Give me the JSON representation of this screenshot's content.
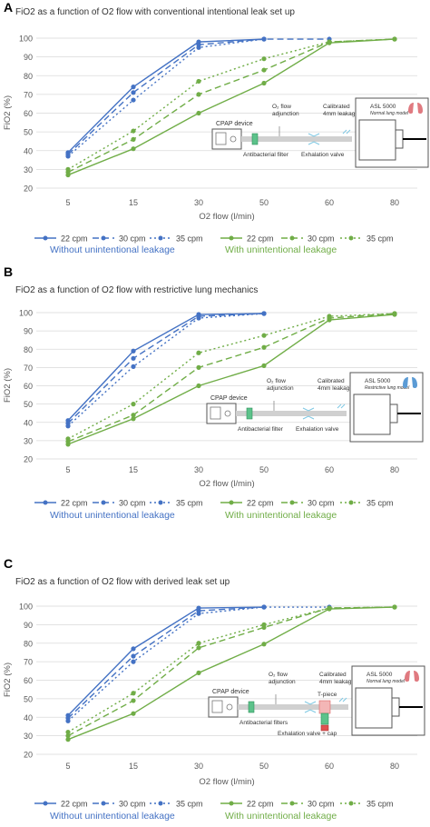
{
  "colors": {
    "blue": "#4472c4",
    "green": "#70ad47",
    "grid": "#d9d9d9",
    "axis": "#595959"
  },
  "legend": {
    "entries": [
      "22 cpm",
      "30 cpm",
      "35 cpm",
      "22 cpm",
      "30 cpm",
      "35 cpm"
    ],
    "group_without": "Without unintentional leakage",
    "group_with": "With unintentional leakage"
  },
  "chart_data": [
    {
      "type": "line",
      "panel": "A",
      "title": "FiO2 as a function of O2 flow with conventional intentional leak set up",
      "xlabel": "O2 flow (l/min)",
      "ylabel": "FiO2 (%)",
      "categories": [
        "5",
        "15",
        "30",
        "50",
        "60",
        "80"
      ],
      "ylim": [
        20,
        100
      ],
      "yticks": [
        20,
        30,
        40,
        50,
        60,
        70,
        80,
        90,
        100
      ],
      "grid": "horizontal",
      "legend_position": "bottom",
      "series": [
        {
          "name": "22 cpm",
          "group": "Without unintentional leakage",
          "color": "blue",
          "dash": "solid",
          "values": [
            39,
            74,
            98,
            99.5,
            null,
            null
          ]
        },
        {
          "name": "30 cpm",
          "group": "Without unintentional leakage",
          "color": "blue",
          "dash": "dashed",
          "values": [
            38,
            71,
            96.5,
            99.5,
            99.5,
            null
          ]
        },
        {
          "name": "35 cpm",
          "group": "Without unintentional leakage",
          "color": "blue",
          "dash": "dotted",
          "values": [
            37,
            67,
            95,
            99.5,
            null,
            null
          ]
        },
        {
          "name": "22 cpm",
          "group": "With unintentional leakage",
          "color": "green",
          "dash": "solid",
          "values": [
            27,
            41,
            60,
            76,
            97.5,
            99.5
          ]
        },
        {
          "name": "30 cpm",
          "group": "With unintentional leakage",
          "color": "green",
          "dash": "dashed",
          "values": [
            28.5,
            46,
            70,
            83,
            98,
            99.5
          ]
        },
        {
          "name": "35 cpm",
          "group": "With unintentional leakage",
          "color": "green",
          "dash": "dotted",
          "values": [
            30,
            50.5,
            77,
            89,
            98,
            99.5
          ]
        }
      ],
      "diagram": {
        "device": "CPAP device",
        "o2_label": "O₂ flow adjunction",
        "leak_label": "Calibrated 4mm leakage",
        "filter_label": "Antibacterial filter",
        "valve_label": "Exhalation valve",
        "lung_title": "ASL 5000",
        "lung_subtitle": "Normal lung model",
        "lung_color": "#e07a80",
        "variant": "A"
      }
    },
    {
      "type": "line",
      "panel": "B",
      "title": "FiO2 as a function of O2 flow with restrictive lung mechanics",
      "xlabel": "O2 flow (l/min)",
      "ylabel": "FiO2 (%)",
      "categories": [
        "5",
        "15",
        "30",
        "50",
        "60",
        "80"
      ],
      "ylim": [
        20,
        100
      ],
      "yticks": [
        20,
        30,
        40,
        50,
        60,
        70,
        80,
        90,
        100
      ],
      "grid": "horizontal",
      "legend_position": "bottom",
      "series": [
        {
          "name": "22 cpm",
          "group": "Without unintentional leakage",
          "color": "blue",
          "dash": "solid",
          "values": [
            41,
            79,
            99,
            99.5,
            null,
            null
          ]
        },
        {
          "name": "30 cpm",
          "group": "Without unintentional leakage",
          "color": "blue",
          "dash": "dashed",
          "values": [
            39.5,
            75,
            98,
            99.5,
            null,
            null
          ]
        },
        {
          "name": "35 cpm",
          "group": "Without unintentional leakage",
          "color": "blue",
          "dash": "dotted",
          "values": [
            38,
            70.5,
            97,
            99.5,
            null,
            null
          ]
        },
        {
          "name": "22 cpm",
          "group": "With unintentional leakage",
          "color": "green",
          "dash": "solid",
          "values": [
            28,
            42,
            60,
            71,
            96,
            99
          ]
        },
        {
          "name": "30 cpm",
          "group": "With unintentional leakage",
          "color": "green",
          "dash": "dashed",
          "values": [
            29.5,
            44,
            70,
            81,
            97,
            99.5
          ]
        },
        {
          "name": "35 cpm",
          "group": "With unintentional leakage",
          "color": "green",
          "dash": "dotted",
          "values": [
            31,
            50,
            78,
            87.5,
            98,
            99.5
          ]
        }
      ],
      "diagram": {
        "device": "CPAP device",
        "o2_label": "O₂ flow adjunction",
        "leak_label": "Calibrated 4mm leakage",
        "filter_label": "Antibacterial filter",
        "valve_label": "Exhalation valve",
        "lung_title": "ASL 5000",
        "lung_subtitle": "Restrictive lung model",
        "lung_color": "#5b9bd5",
        "variant": "B"
      }
    },
    {
      "type": "line",
      "panel": "C",
      "title": "FiO2 as a function of O2 flow with derived leak set up",
      "xlabel": "O2 flow (l/min)",
      "ylabel": "FiO2 (%)",
      "categories": [
        "5",
        "15",
        "30",
        "50",
        "60",
        "80"
      ],
      "ylim": [
        20,
        100
      ],
      "yticks": [
        20,
        30,
        40,
        50,
        60,
        70,
        80,
        90,
        100
      ],
      "grid": "horizontal",
      "legend_position": "bottom",
      "series": [
        {
          "name": "22 cpm",
          "group": "Without unintentional leakage",
          "color": "blue",
          "dash": "solid",
          "values": [
            41,
            77,
            99,
            99.5,
            null,
            null
          ]
        },
        {
          "name": "30 cpm",
          "group": "Without unintentional leakage",
          "color": "blue",
          "dash": "dashed",
          "values": [
            39.5,
            73,
            97.5,
            99.5,
            null,
            null
          ]
        },
        {
          "name": "35 cpm",
          "group": "Without unintentional leakage",
          "color": "blue",
          "dash": "dotted",
          "values": [
            38,
            70,
            96,
            99.5,
            99.5,
            null
          ]
        },
        {
          "name": "22 cpm",
          "group": "With unintentional leakage",
          "color": "green",
          "dash": "solid",
          "values": [
            28,
            42,
            64,
            79.5,
            98.5,
            99.5
          ]
        },
        {
          "name": "30 cpm",
          "group": "With unintentional leakage",
          "color": "green",
          "dash": "dashed",
          "values": [
            30,
            49,
            77.5,
            88.5,
            99,
            99.5
          ]
        },
        {
          "name": "35 cpm",
          "group": "With unintentional leakage",
          "color": "green",
          "dash": "dotted",
          "values": [
            32,
            53,
            80,
            90,
            99,
            99.5
          ]
        }
      ],
      "diagram": {
        "device": "CPAP device",
        "o2_label": "O₂ flow adjunction",
        "leak_label": "Calibrated 4mm leakage",
        "filter_label": "Antibacterial filters",
        "valve_label": "Exhalation valve + cap",
        "tpiece_label": "T-piece",
        "lung_title": "ASL 5000",
        "lung_subtitle": "Normal lung model",
        "lung_color": "#e07a80",
        "variant": "C"
      }
    }
  ]
}
